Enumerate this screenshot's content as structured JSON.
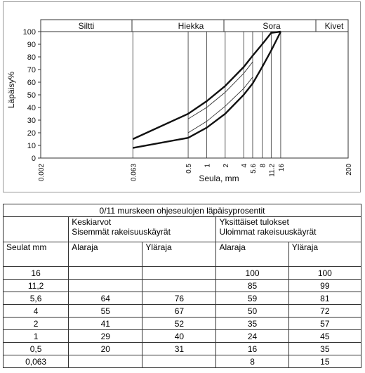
{
  "chart_data": {
    "type": "line",
    "xlabel": "Seula, mm",
    "ylabel": "Läpäisy%",
    "zones": [
      "Siltti",
      "Hiekka",
      "Sora",
      "Kivet"
    ],
    "x": [
      0.063,
      0.5,
      1,
      2,
      4,
      5.6,
      8,
      11.2,
      16
    ],
    "series": [
      {
        "color": "#111",
        "width": 2.4,
        "values": [
          8,
          16,
          24,
          35,
          50,
          59,
          72,
          85,
          100
        ]
      },
      {
        "color": "#111",
        "width": 2.4,
        "values": [
          15,
          35,
          45,
          57,
          72,
          81,
          90,
          99,
          100
        ]
      },
      {
        "color": "#333",
        "width": 0.9,
        "values": [
          null,
          20,
          29,
          41,
          55,
          64,
          null,
          null,
          null
        ]
      },
      {
        "color": "#333",
        "width": 0.9,
        "values": [
          null,
          31,
          40,
          52,
          67,
          76,
          null,
          null,
          null
        ]
      }
    ],
    "log_x": true,
    "xlim": [
      0.002,
      200
    ],
    "xticks": [
      0.002,
      0.063,
      0.5,
      1,
      2,
      4,
      5.6,
      8,
      11.2,
      16,
      200
    ],
    "ylim": [
      0,
      100
    ],
    "yticks": [
      0,
      10,
      20,
      30,
      40,
      50,
      60,
      70,
      80,
      90,
      100
    ],
    "grid_x": true
  },
  "table": {
    "title": "0/11 murskeen ohjeseulojen läpäisyprosentit",
    "group1": [
      "Keskiarvot",
      "Sisemmät rakeisuuskäyrät"
    ],
    "group2": [
      "Yksittäiset tulokset",
      "Uloimmat rakeisuuskäyrät"
    ],
    "header": [
      "Seulat mm",
      "Alaraja",
      "Yläraja",
      "Alaraja",
      "Yläraja"
    ],
    "rows": [
      [
        "16",
        null,
        null,
        100,
        100
      ],
      [
        "11,2",
        null,
        null,
        85,
        99
      ],
      [
        "5,6",
        64,
        76,
        59,
        81
      ],
      [
        "4",
        55,
        67,
        50,
        72
      ],
      [
        "2",
        41,
        52,
        35,
        57
      ],
      [
        "1",
        29,
        40,
        24,
        45
      ],
      [
        "0,5",
        20,
        31,
        16,
        35
      ],
      [
        "0,063",
        null,
        null,
        8,
        15
      ]
    ]
  }
}
